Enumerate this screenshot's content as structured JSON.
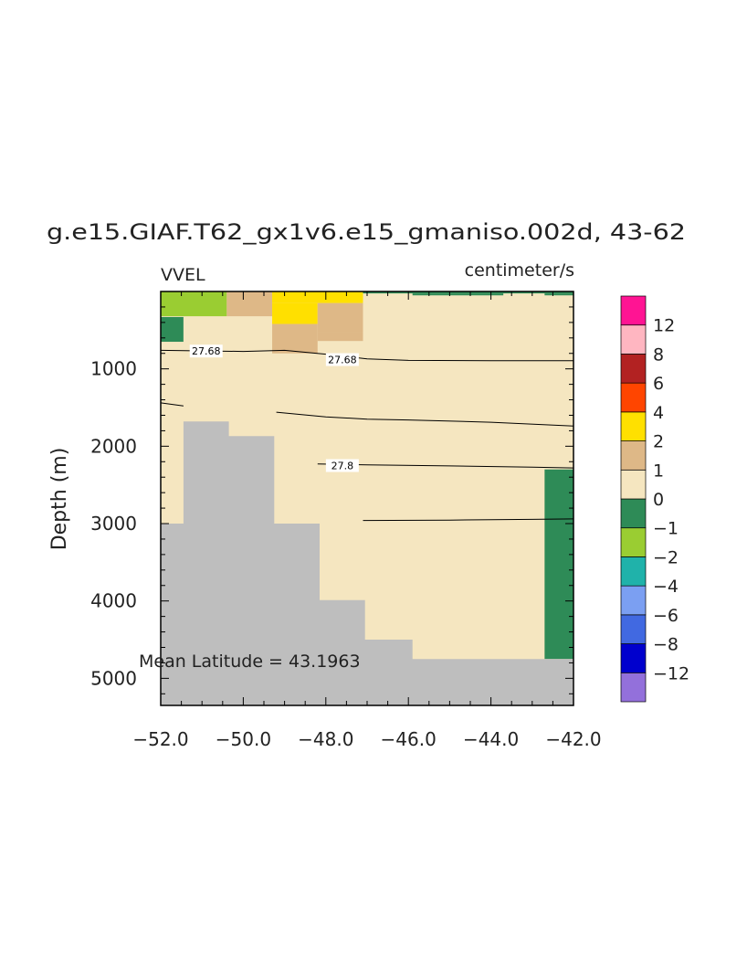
{
  "chart_data": {
    "type": "heatmap",
    "title": "g.e15.GIAF.T62_gx1v6.e15_gmaniso.002d, 43-62",
    "left_label": "VVEL",
    "right_label": "centimeter/s",
    "ylabel": "Depth (m)",
    "xlabel": "",
    "xlim": [
      -52,
      -42
    ],
    "ylim": [
      5350,
      0
    ],
    "y_inverted": true,
    "x_ticks": [
      -52,
      -50,
      -48,
      -46,
      -44,
      -42
    ],
    "x_tick_labels": [
      "−52.0",
      "−50.0",
      "−48.0",
      "−46.0",
      "−44.0",
      "−42.0"
    ],
    "y_ticks": [
      1000,
      2000,
      3000,
      4000,
      5000
    ],
    "y_tick_labels": [
      "1000",
      "2000",
      "3000",
      "4000",
      "5000"
    ],
    "annotation": "Mean Latitude = 43.1963",
    "background_color": "#f5e6c0",
    "land_color": "#bebebe",
    "colorbar": {
      "colors": [
        "#9370db",
        "#0000cd",
        "#4169e1",
        "#7b9ff2",
        "#20b2aa",
        "#9acd32",
        "#2e8b57",
        "#f5e6c0",
        "#deb887",
        "#ffe000",
        "#ff4500",
        "#b22222",
        "#ffb6c1",
        "#ff1493"
      ],
      "labels": [
        "−12",
        "−8",
        "−6",
        "−4",
        "−2",
        "−1",
        "0",
        "1",
        "2",
        "4",
        "6",
        "8",
        "12"
      ]
    },
    "cells": [
      {
        "x": [
          -52.0,
          -50.4
        ],
        "depth": [
          0,
          320
        ],
        "color": "#9acd32"
      },
      {
        "x": [
          -50.4,
          -49.3
        ],
        "depth": [
          0,
          320
        ],
        "color": "#deb887"
      },
      {
        "x": [
          -49.3,
          -47.1
        ],
        "depth": [
          0,
          150
        ],
        "color": "#ffe000"
      },
      {
        "x": [
          -49.3,
          -48.2
        ],
        "depth": [
          150,
          420
        ],
        "color": "#ffe000"
      },
      {
        "x": [
          -48.2,
          -47.1
        ],
        "depth": [
          150,
          520
        ],
        "color": "#deb887"
      },
      {
        "x": [
          -49.3,
          -48.2
        ],
        "depth": [
          420,
          800
        ],
        "color": "#deb887"
      },
      {
        "x": [
          -48.2,
          -47.1
        ],
        "depth": [
          520,
          640
        ],
        "color": "#deb887"
      },
      {
        "x": [
          -52.0,
          -51.45
        ],
        "depth": [
          330,
          650
        ],
        "color": "#2e8b57"
      },
      {
        "x": [
          -47.1,
          -42.0
        ],
        "depth": [
          0,
          25
        ],
        "color": "#2e8b57"
      },
      {
        "x": [
          -45.9,
          -43.7
        ],
        "depth": [
          25,
          50
        ],
        "color": "#2e8b57"
      },
      {
        "x": [
          -42.7,
          -42.0
        ],
        "depth": [
          25,
          50
        ],
        "color": "#2e8b57"
      },
      {
        "x": [
          -42.7,
          -42.0
        ],
        "depth": [
          2300,
          4750
        ],
        "color": "#2e8b57"
      }
    ],
    "land_steps": [
      {
        "x": -52.0,
        "depth": 3000
      },
      {
        "x": -51.45,
        "depth": 1680
      },
      {
        "x": -50.35,
        "depth": 1870
      },
      {
        "x": -49.25,
        "depth": 3000
      },
      {
        "x": -48.15,
        "depth": 3990
      },
      {
        "x": -47.05,
        "depth": 4500
      },
      {
        "x": -45.9,
        "depth": 4750
      },
      {
        "x": -42.0,
        "depth": 4750
      }
    ],
    "contours": [
      {
        "label": "27.68",
        "label_positions": [
          [
            -50.9,
            770
          ],
          [
            -47.6,
            880
          ]
        ],
        "points": [
          [
            -52.0,
            760
          ],
          [
            -50.0,
            775
          ],
          [
            -49.0,
            760
          ],
          [
            -48.0,
            810
          ],
          [
            -47.0,
            870
          ],
          [
            -46.0,
            890
          ],
          [
            -44.0,
            895
          ],
          [
            -42.0,
            895
          ]
        ]
      },
      {
        "label": "",
        "label_positions": [],
        "points": [
          [
            -52.0,
            1440
          ],
          [
            -51.45,
            1480
          ]
        ]
      },
      {
        "label": "",
        "label_positions": [],
        "points": [
          [
            -49.2,
            1560
          ],
          [
            -48.0,
            1620
          ],
          [
            -47.0,
            1650
          ],
          [
            -46.0,
            1660
          ],
          [
            -44.0,
            1690
          ],
          [
            -42.0,
            1740
          ]
        ]
      },
      {
        "label": "27.8",
        "label_positions": [
          [
            -47.6,
            2250
          ]
        ],
        "points": [
          [
            -48.2,
            2230
          ],
          [
            -47.0,
            2240
          ],
          [
            -45.0,
            2255
          ],
          [
            -43.0,
            2270
          ],
          [
            -42.0,
            2280
          ]
        ]
      },
      {
        "label": "",
        "label_positions": [],
        "points": [
          [
            -47.1,
            2960
          ],
          [
            -45.0,
            2955
          ],
          [
            -43.0,
            2945
          ],
          [
            -42.0,
            2940
          ]
        ]
      }
    ]
  }
}
